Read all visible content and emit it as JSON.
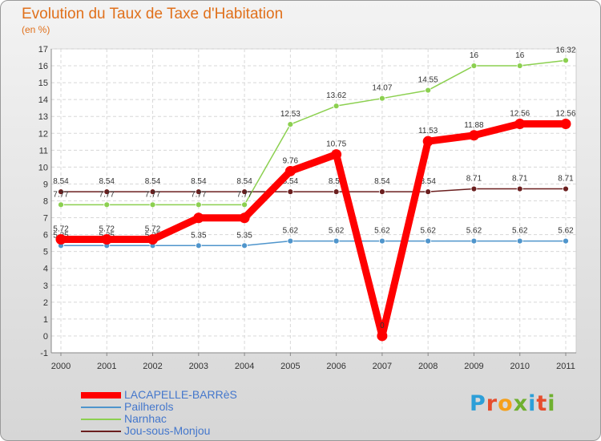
{
  "title": "Evolution du Taux de Taxe d'Habitation",
  "subtitle": "(en %)",
  "logo": {
    "letters": [
      "P",
      "r",
      "o",
      "x",
      "i",
      "t",
      "i"
    ],
    "colors": [
      "#2d9fd8",
      "#e64e2e",
      "#f5a01a",
      "#6fb02f",
      "#2d9fd8",
      "#e64e2e",
      "#6fb02f"
    ]
  },
  "chart_data": {
    "type": "line",
    "title": "Evolution du Taux de Taxe d'Habitation",
    "ylabel": "(en %)",
    "xlabel": "",
    "ylim": [
      -1,
      17
    ],
    "yticks": [
      "-1",
      "0",
      "1",
      "2",
      "3",
      "4",
      "5",
      "6",
      "7",
      "8",
      "9",
      "10",
      "11",
      "12",
      "13",
      "14",
      "15",
      "16",
      "17"
    ],
    "categories": [
      "2000",
      "2001",
      "2002",
      "2003",
      "2004",
      "2005",
      "2006",
      "2007",
      "2008",
      "2009",
      "2010",
      "2011"
    ],
    "series": [
      {
        "name": "Jou-sous-Monjou",
        "color": "#6b1f1f",
        "values": [
          8.54,
          8.54,
          8.54,
          8.54,
          8.54,
          8.54,
          8.54,
          8.54,
          8.54,
          8.71,
          8.71,
          8.71
        ],
        "labels": [
          "8.54",
          "8.54",
          "8.54",
          "8.54",
          "8.54",
          "8.54",
          "8.54",
          "8.54",
          "8.54",
          "8.71",
          "8.71",
          "8.71"
        ]
      },
      {
        "name": "Narnhac",
        "color": "#8cd050",
        "values": [
          7.77,
          7.77,
          7.77,
          7.77,
          7.77,
          12.53,
          13.62,
          14.07,
          14.55,
          16,
          16,
          16.32
        ],
        "labels": [
          "7.77",
          "7.77",
          "7.77",
          "7.77",
          "7.77",
          "12.53",
          "13.62",
          "14.07",
          "14.55",
          "16",
          "16",
          "16.32"
        ]
      },
      {
        "name": "Pailherols",
        "color": "#4f95cc",
        "values": [
          5.35,
          5.35,
          5.35,
          5.35,
          5.35,
          5.62,
          5.62,
          5.62,
          5.62,
          5.62,
          5.62,
          5.62
        ],
        "labels": [
          "5.35",
          "5.35",
          "5.35",
          "5.35",
          "5.35",
          "5.62",
          "5.62",
          "5.62",
          "5.62",
          "5.62",
          "5.62",
          "5.62"
        ]
      },
      {
        "name": "LACAPELLE-BARRèS",
        "color": "#ff0000",
        "values": [
          5.72,
          5.72,
          5.72,
          6.99,
          6.99,
          9.76,
          10.75,
          0,
          11.53,
          11.88,
          12.56,
          12.56
        ],
        "labels": [
          "5.72",
          "5.72",
          "5.72",
          "",
          "",
          "9.76",
          "10.75",
          "0",
          "11.53",
          "11.88",
          "12.56",
          "12.56"
        ]
      }
    ],
    "legend": [
      "LACAPELLE-BARRèS",
      "Pailherols",
      "Narnhac",
      "Jou-sous-Monjou"
    ]
  }
}
